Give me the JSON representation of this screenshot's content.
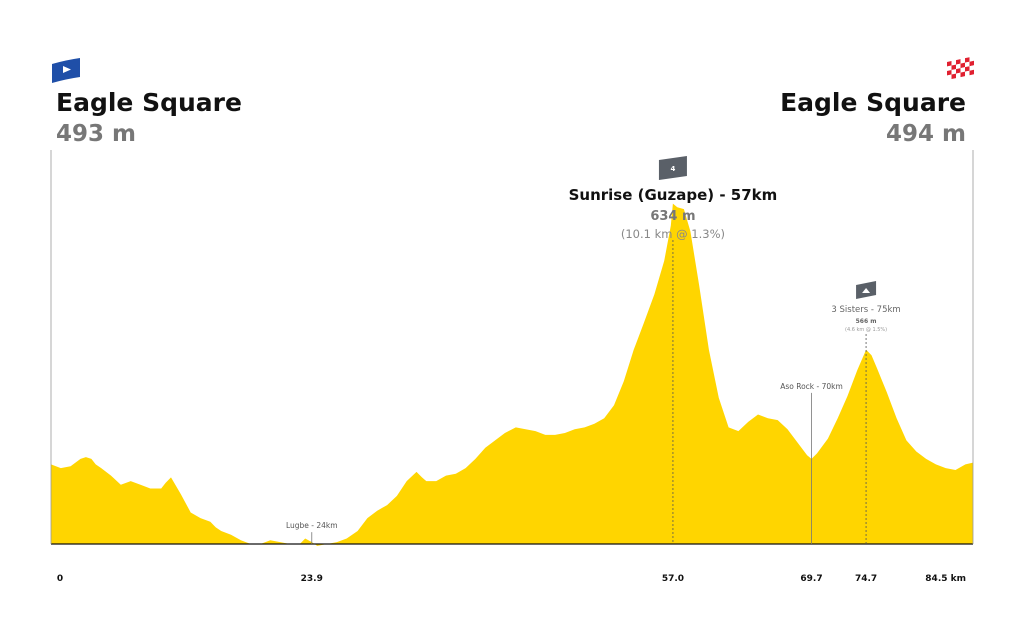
{
  "chart_data": {
    "type": "area",
    "title": "",
    "xlabel": "",
    "ylabel": "",
    "x_unit": "km",
    "xlim": [
      0,
      84.5
    ],
    "ylim": [
      450,
      650
    ],
    "fill_color": "#FFD500",
    "start": {
      "name": "Eagle Square",
      "elevation": "493 m",
      "flag": "start-flag-icon",
      "flag_color": "#1F4FA8"
    },
    "finish": {
      "name": "Eagle Square",
      "elevation": "494 m",
      "flag": "checkered-flag-icon",
      "flag_color": "#E02030"
    },
    "ticks": [
      {
        "value": 0,
        "label": "0"
      },
      {
        "value": 23.9,
        "label": "23.9"
      },
      {
        "value": 57.0,
        "label": "57.0"
      },
      {
        "value": 69.7,
        "label": "69.7"
      },
      {
        "value": 74.7,
        "label": "74.7"
      },
      {
        "value": 84.5,
        "label": "84.5 km"
      }
    ],
    "climbs": [
      {
        "name": "Sunrise (Guzape) - 57km",
        "km": 57.0,
        "elevation": "634 m",
        "gradient": "(10.1 km @ 1.3%)",
        "category": "4",
        "size": "large"
      },
      {
        "name": "3 Sisters - 75km",
        "km": 74.7,
        "elevation": "566 m",
        "gradient": "(4.6 km @ 1.5%)",
        "category": "",
        "size": "small"
      }
    ],
    "points": [
      {
        "name": "Lugbe - 24km",
        "km": 23.9
      },
      {
        "name": "Aso Rock - 70km",
        "km": 69.7
      }
    ],
    "profile": {
      "x": [
        0,
        0.9,
        1.8,
        2.7,
        3.2,
        3.7,
        4.1,
        4.6,
        5.5,
        6.4,
        7.3,
        8.2,
        9.1,
        10.1,
        10.5,
        11.0,
        11.9,
        12.8,
        13.7,
        14.6,
        15.1,
        15.6,
        16.5,
        17.4,
        18.3,
        19.2,
        20.1,
        21.0,
        21.9,
        22.8,
        23.3,
        23.9,
        24.4,
        25.3,
        26.2,
        27.1,
        28.1,
        29.0,
        29.9,
        30.8,
        31.7,
        32.6,
        33.5,
        34.0,
        34.4,
        35.3,
        36.2,
        37.1,
        38.0,
        38.9,
        39.8,
        40.7,
        41.6,
        42.6,
        43.5,
        44.4,
        45.3,
        46.2,
        47.1,
        48.0,
        48.9,
        49.8,
        50.7,
        51.6,
        52.5,
        53.4,
        54.3,
        55.3,
        56.2,
        56.8,
        57.0,
        57.4,
        58.0,
        58.6,
        59.4,
        60.3,
        61.2,
        62.1,
        63.0,
        63.9,
        64.8,
        65.7,
        66.6,
        67.5,
        68.4,
        69.3,
        69.7,
        70.2,
        71.2,
        72.1,
        73.0,
        73.9,
        74.7,
        75.2,
        75.7,
        76.6,
        77.5,
        78.4,
        79.3,
        80.2,
        81.1,
        82.0,
        82.9,
        83.8,
        84.5
      ],
      "elev": [
        493,
        491,
        492,
        496,
        497,
        496,
        493,
        491,
        487,
        482,
        484,
        482,
        480,
        480,
        483,
        486,
        477,
        467,
        464,
        462,
        459,
        457,
        455,
        452,
        450,
        450,
        452,
        451,
        450,
        450,
        453,
        451,
        449,
        450,
        451,
        453,
        457,
        464,
        468,
        471,
        476,
        484,
        489,
        486,
        484,
        484,
        487,
        488,
        491,
        496,
        502,
        506,
        510,
        513,
        512,
        511,
        509,
        509,
        510,
        512,
        513,
        515,
        518,
        525,
        538,
        555,
        569,
        585,
        603,
        622,
        634,
        632,
        631,
        619,
        590,
        555,
        529,
        513,
        511,
        516,
        520,
        518,
        517,
        512,
        505,
        498,
        496,
        499,
        507,
        518,
        530,
        544,
        555,
        552,
        545,
        532,
        518,
        506,
        500,
        496,
        493,
        491,
        490,
        493,
        494
      ]
    }
  }
}
